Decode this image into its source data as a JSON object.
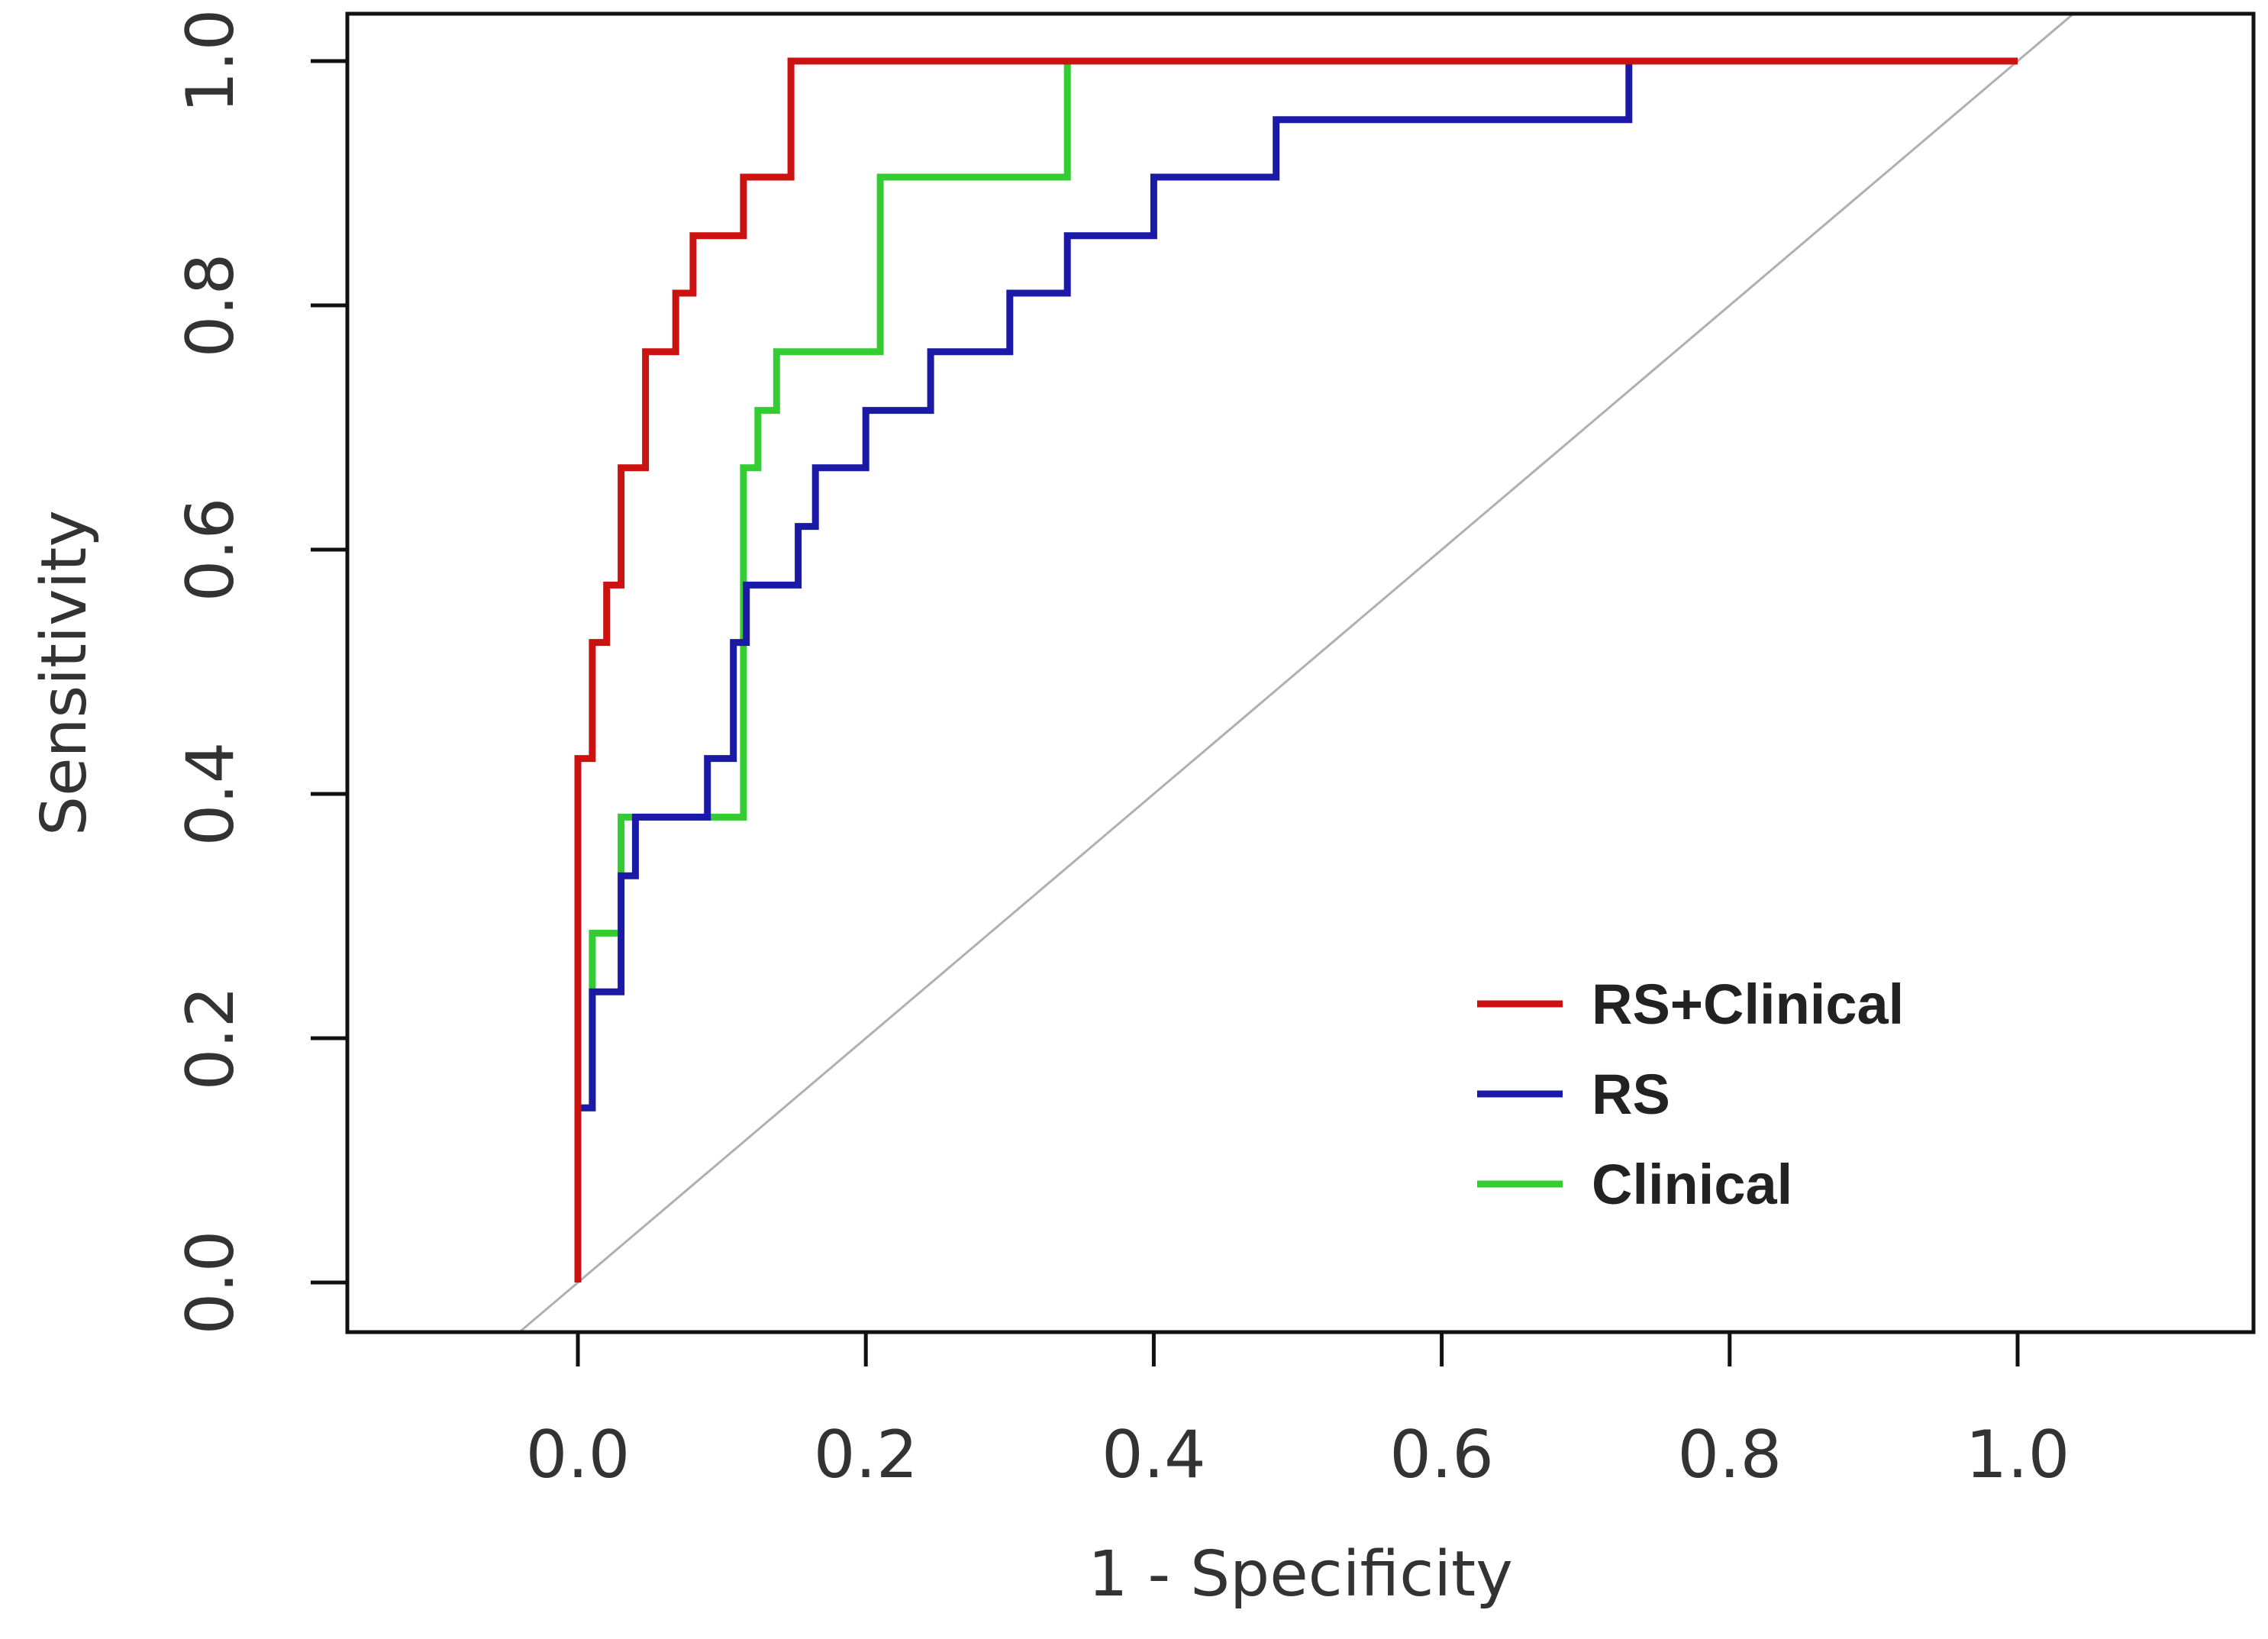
{
  "chart_data": {
    "type": "line",
    "title": "",
    "xlabel": "1 - Specificity",
    "ylabel": "Sensitivity",
    "xlim": [
      -0.2,
      1.16
    ],
    "ylim": [
      -0.04,
      1.04
    ],
    "xticks": [
      0.0,
      0.2,
      0.4,
      0.6,
      0.8,
      1.0
    ],
    "yticks": [
      0.0,
      0.2,
      0.4,
      0.6,
      0.8,
      1.0
    ],
    "xtick_labels": [
      "0.0",
      "0.2",
      "0.4",
      "0.6",
      "0.8",
      "1.0"
    ],
    "ytick_labels": [
      "0.0",
      "0.2",
      "0.4",
      "0.6",
      "0.8",
      "1.0"
    ],
    "grid": false,
    "legend_position": "bottom-right",
    "reference_line": {
      "name": "chance",
      "color": "#b0b0b0",
      "points": [
        [
          -0.04,
          -0.04
        ],
        [
          1.04,
          1.04
        ]
      ]
    },
    "series": [
      {
        "name": "Clinical",
        "color": "#33cc33",
        "points": [
          [
            0.0,
            0.0
          ],
          [
            0.0,
            0.143
          ],
          [
            0.01,
            0.143
          ],
          [
            0.01,
            0.286
          ],
          [
            0.03,
            0.286
          ],
          [
            0.03,
            0.381
          ],
          [
            0.115,
            0.381
          ],
          [
            0.115,
            0.524
          ],
          [
            0.115,
            0.667
          ],
          [
            0.125,
            0.667
          ],
          [
            0.125,
            0.714
          ],
          [
            0.138,
            0.714
          ],
          [
            0.138,
            0.762
          ],
          [
            0.21,
            0.762
          ],
          [
            0.21,
            0.905
          ],
          [
            0.34,
            0.905
          ],
          [
            0.34,
            1.0
          ],
          [
            1.0,
            1.0
          ]
        ]
      },
      {
        "name": "RS",
        "color": "#1a1aa6",
        "points": [
          [
            0.0,
            0.0
          ],
          [
            0.0,
            0.143
          ],
          [
            0.01,
            0.143
          ],
          [
            0.01,
            0.238
          ],
          [
            0.03,
            0.238
          ],
          [
            0.03,
            0.333
          ],
          [
            0.04,
            0.333
          ],
          [
            0.04,
            0.381
          ],
          [
            0.09,
            0.381
          ],
          [
            0.09,
            0.429
          ],
          [
            0.108,
            0.429
          ],
          [
            0.108,
            0.524
          ],
          [
            0.117,
            0.524
          ],
          [
            0.117,
            0.571
          ],
          [
            0.153,
            0.571
          ],
          [
            0.153,
            0.619
          ],
          [
            0.165,
            0.619
          ],
          [
            0.165,
            0.667
          ],
          [
            0.2,
            0.667
          ],
          [
            0.2,
            0.714
          ],
          [
            0.245,
            0.714
          ],
          [
            0.245,
            0.762
          ],
          [
            0.3,
            0.762
          ],
          [
            0.3,
            0.81
          ],
          [
            0.34,
            0.81
          ],
          [
            0.34,
            0.857
          ],
          [
            0.4,
            0.857
          ],
          [
            0.4,
            0.905
          ],
          [
            0.485,
            0.905
          ],
          [
            0.485,
            0.952
          ],
          [
            0.73,
            0.952
          ],
          [
            0.73,
            1.0
          ],
          [
            1.0,
            1.0
          ]
        ]
      },
      {
        "name": "RS+Clinical",
        "color": "#cc1111",
        "points": [
          [
            0.0,
            0.0
          ],
          [
            0.0,
            0.429
          ],
          [
            0.01,
            0.429
          ],
          [
            0.01,
            0.524
          ],
          [
            0.02,
            0.524
          ],
          [
            0.02,
            0.571
          ],
          [
            0.03,
            0.571
          ],
          [
            0.03,
            0.667
          ],
          [
            0.047,
            0.667
          ],
          [
            0.047,
            0.762
          ],
          [
            0.068,
            0.762
          ],
          [
            0.068,
            0.81
          ],
          [
            0.08,
            0.81
          ],
          [
            0.08,
            0.857
          ],
          [
            0.115,
            0.857
          ],
          [
            0.115,
            0.905
          ],
          [
            0.148,
            0.905
          ],
          [
            0.148,
            1.0
          ],
          [
            1.0,
            1.0
          ]
        ]
      }
    ],
    "legend_order": [
      "RS+Clinical",
      "RS",
      "Clinical"
    ]
  }
}
